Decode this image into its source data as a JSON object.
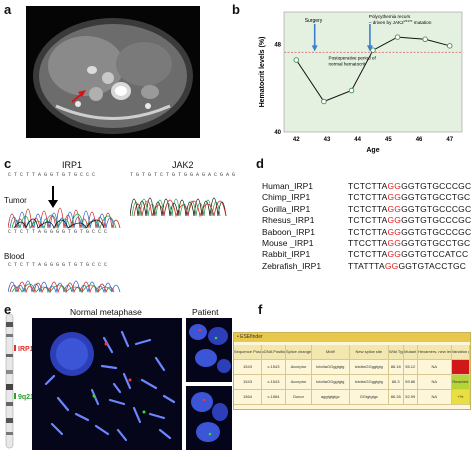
{
  "panels": {
    "a": "a",
    "b": "b",
    "c": "c",
    "d": "d",
    "e": "e",
    "f": "f"
  },
  "panel_b": {
    "y_axis_label": "Hematocrit levels (%)",
    "x_axis_label": "Age",
    "annotation_surgery": "Surgery",
    "annotation_poly_line1": "Polycythemia recurs",
    "annotation_poly_line2": "– driven by JAK2",
    "annotation_poly_sup": "V617F",
    "annotation_poly_line2_end": " mutation",
    "annotation_postop_line1": "Postoperative period of",
    "annotation_postop_line2": "normal hematocrit"
  },
  "chart_data": {
    "type": "line",
    "xlabel": "Age",
    "ylabel": "Hematocrit levels (%)",
    "x": [
      42,
      43,
      44,
      45,
      46,
      47
    ],
    "y_ticks": [
      40,
      48
    ],
    "points": [
      {
        "x": 42,
        "y": 46.6
      },
      {
        "x": 42.9,
        "y": 42.8
      },
      {
        "x": 43.8,
        "y": 43.8
      },
      {
        "x": 44.5,
        "y": 47.5
      },
      {
        "x": 45.3,
        "y": 48.7
      },
      {
        "x": 46.2,
        "y": 48.5
      },
      {
        "x": 47.0,
        "y": 47.9
      }
    ],
    "reference_line_y": 47.3,
    "surgery_age": 42.6,
    "recur_age": 44.4,
    "colors": {
      "line": "#111111",
      "marker_face": "#ffffff",
      "marker_edge": "#4a8a5a",
      "reference": "#d98080",
      "arrows": "#3a7fd0",
      "background": "#e4f0e0"
    }
  },
  "panel_c": {
    "irp1_title": "IRP1",
    "jak2_title": "JAK2",
    "tumor_label": "Tumor",
    "blood_label": "Blood",
    "irp1_seq_top": "C T C T T A G G T G T G C C C",
    "irp1_seq_bottom": "C T C T T A G G G G T G T G C C C",
    "jak2_seq_top": "T G T G T C T G T G G A G A C G A G",
    "blood_seq": "C T C T T A G G G G T G T G C C C"
  },
  "panel_d": {
    "rows": [
      {
        "name": "Human_IRP1",
        "pre": "TCTCTTA",
        "hl": "GG",
        "post": "GGTGTGCCCGC"
      },
      {
        "name": "Chimp_IRP1",
        "pre": "TCTCTTA",
        "hl": "GG",
        "post": "GGTGTGCCTGC"
      },
      {
        "name": "Gorilla_IRP1",
        "pre": "TCTCTTA",
        "hl": "GG",
        "post": "GGTGTGCCCGC"
      },
      {
        "name": "Rhesus_IRP1",
        "pre": "TCTCTTA",
        "hl": "GG",
        "post": "GGTGTGCCCGC"
      },
      {
        "name": "Baboon_IRP1",
        "pre": "TCTCTTA",
        "hl": "GG",
        "post": "GGTGTGCCCGC"
      },
      {
        "name": "Mouse _IRP1",
        "pre": "TTCCTTA",
        "hl": "GG",
        "post": "GGTGTGCCTGC"
      },
      {
        "name": "Rabbit_IRP1",
        "pre": "TCTCTTA",
        "hl": "GG",
        "post": "GGTGTCCATCC"
      },
      {
        "name": "Zebrafish_IRP1",
        "pre": "TTATTTA",
        "hl": "GG",
        "post": "GGTGTACCTGC"
      }
    ],
    "highlight_color": "#e02020"
  },
  "panel_e": {
    "normal_title": "Normal metaphase",
    "patient_title": "Patient",
    "irp1_label": "IRP1",
    "band_label": "9q21",
    "irp1_color": "#e03030",
    "band_color": "#2aa030"
  },
  "panel_f": {
    "header": "• ESEfinder",
    "columns": [
      "Sequence Position",
      "cDNA Position",
      "Splice change",
      "Motif",
      "New splice site",
      "Wild Type",
      "Mutant",
      "Hexamers, new length variation",
      "Variation (%)"
    ],
    "rows": [
      [
        "1543",
        "c.1543",
        "Acceptor",
        "tctcttaGGggtgtg",
        "tctcttaGGggtgtg",
        "86.18",
        "55.12",
        "NA",
        ""
      ],
      [
        "1543",
        "c.1543",
        "Acceptor",
        "tctcttaGGggtgtg",
        "tctcttaGGggtgtg",
        "86.3",
        "59.86",
        "NA",
        "Reached"
      ],
      [
        "1564",
        "c.1564",
        "Donor",
        "aggtgtgtgc",
        "GGtgtgtgc",
        "86.28",
        "52.99",
        "NA",
        "+%"
      ]
    ],
    "variation_colors": [
      "#d01818",
      "#b6d43a",
      "#e8e040"
    ]
  }
}
